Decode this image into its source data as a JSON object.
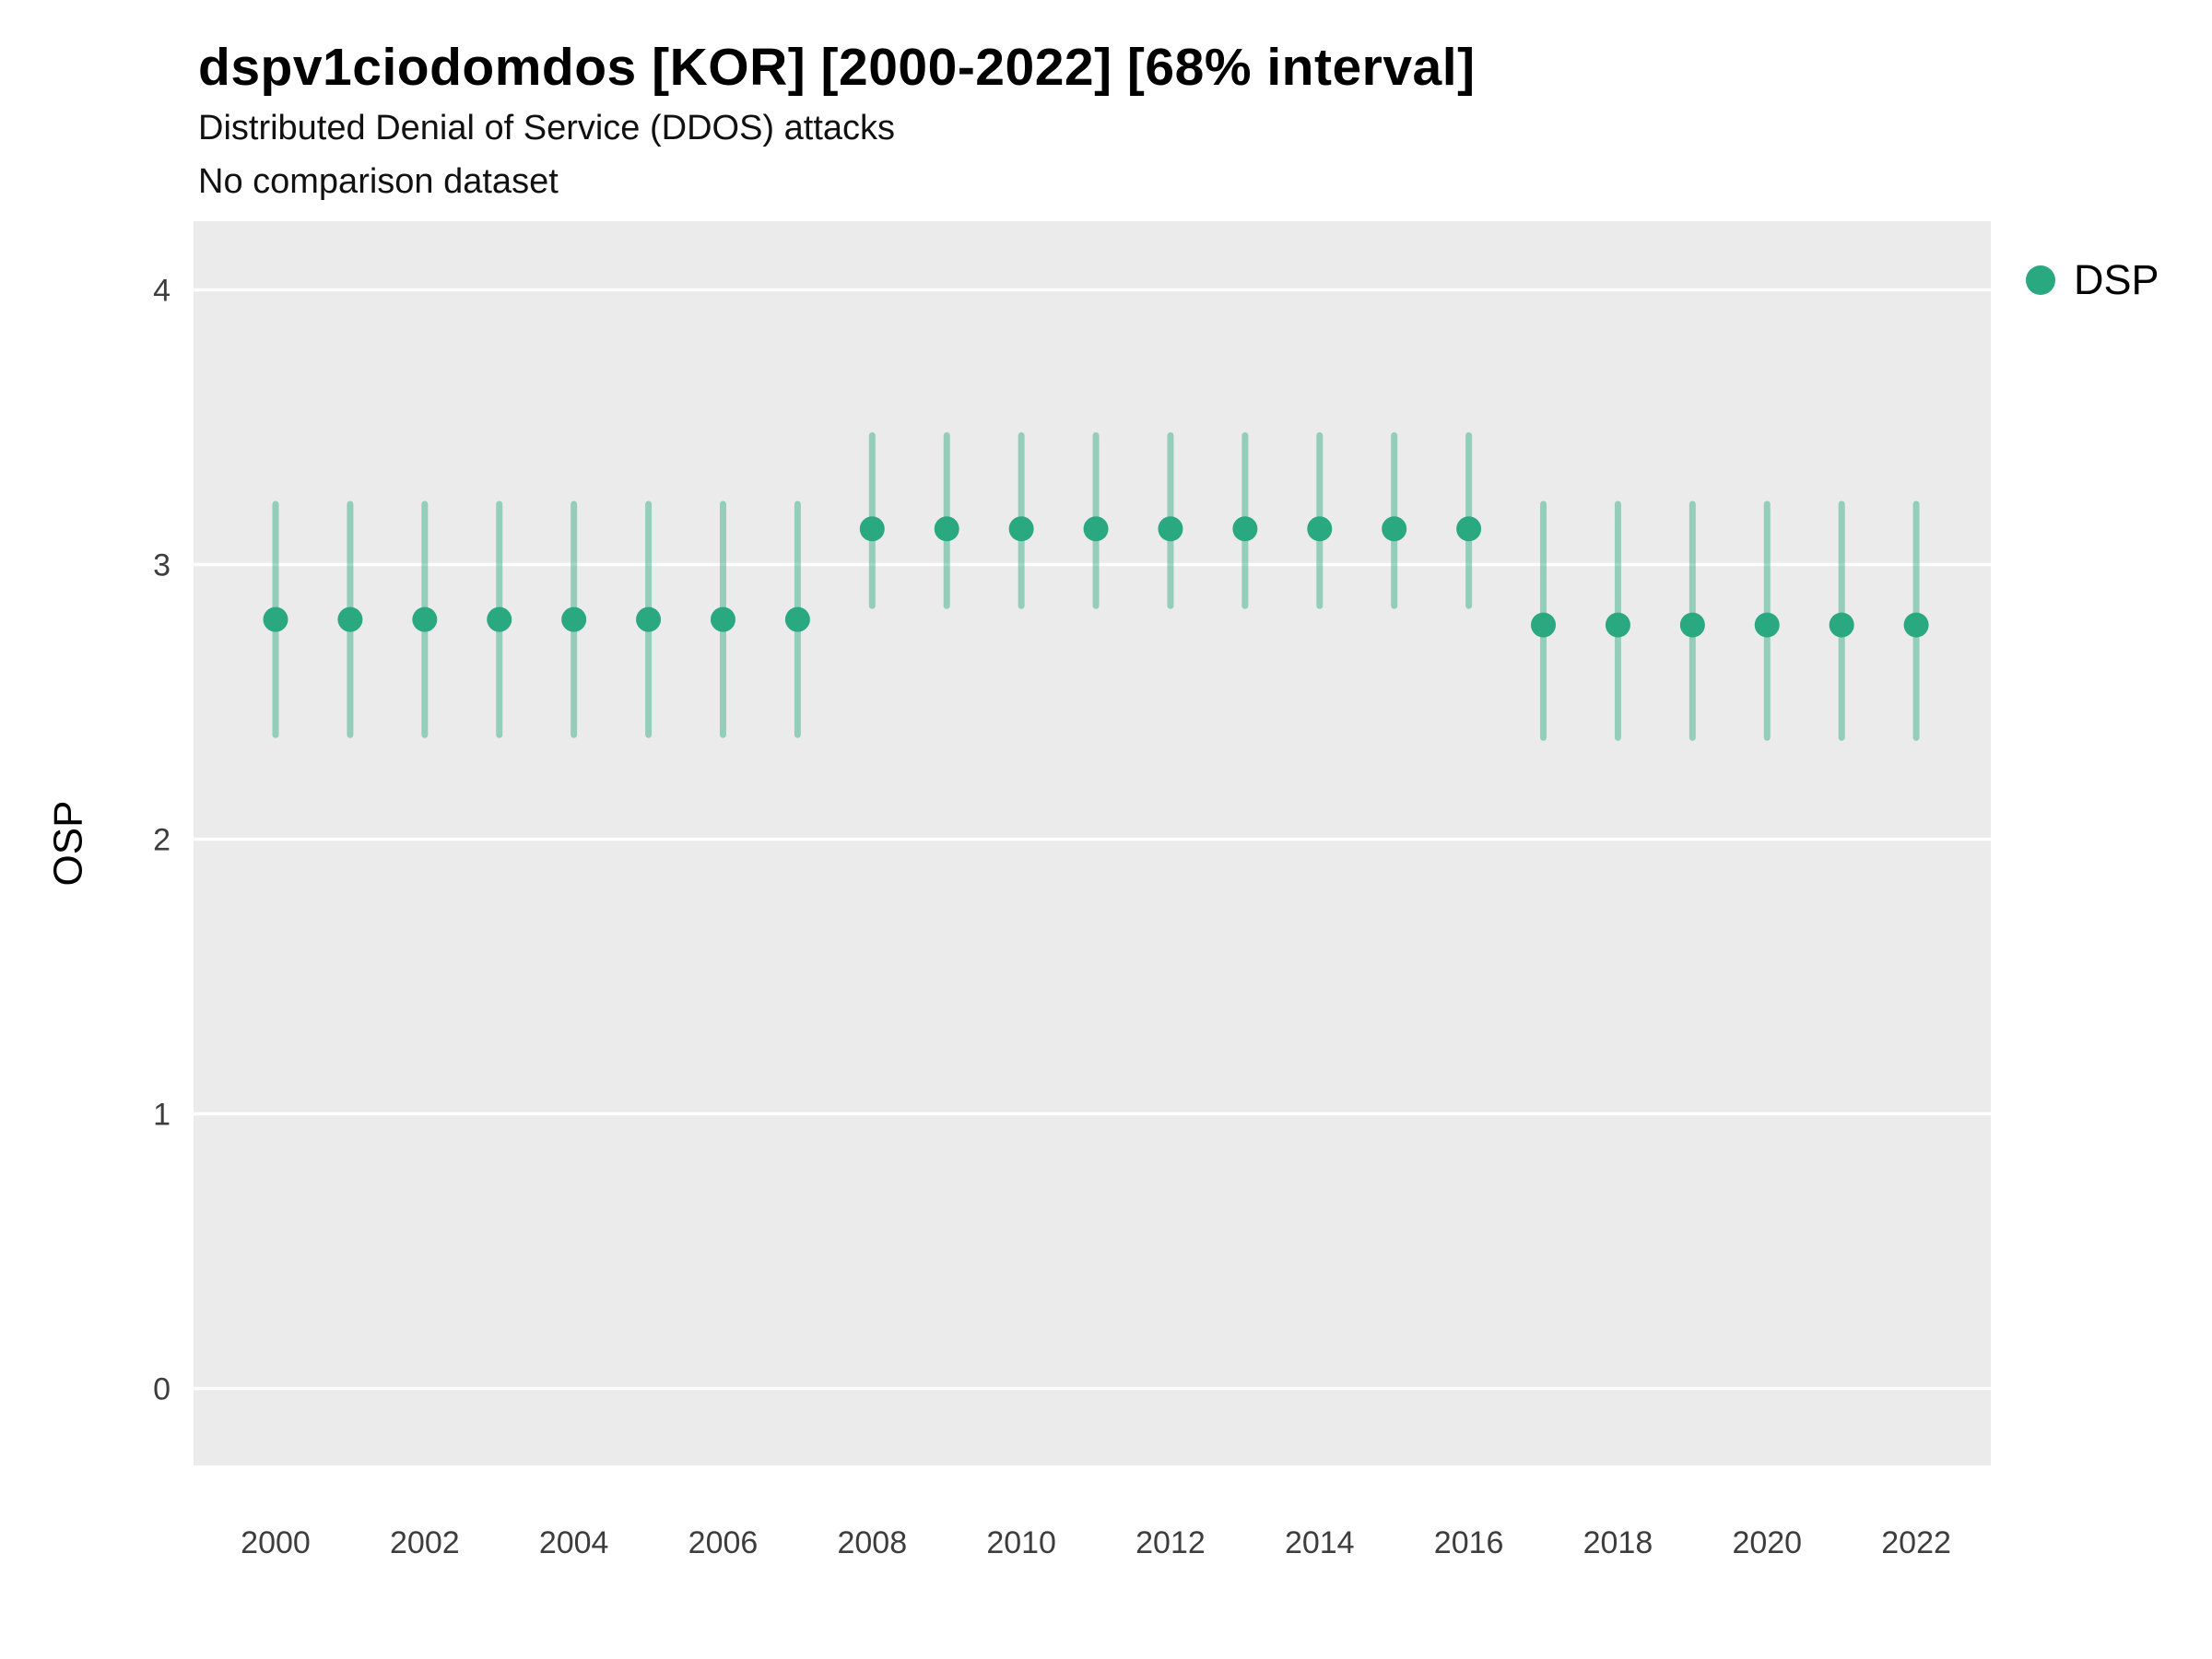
{
  "header": {
    "title": "dspv1ciodomdos [KOR] [2000-2022] [68% interval]",
    "subtitle": "Distributed Denial of Service (DDOS) attacks",
    "note": "No comparison dataset"
  },
  "axes": {
    "ylabel": "OSP",
    "yticks": [
      0,
      1,
      2,
      3,
      4
    ],
    "xticks": [
      2000,
      2002,
      2004,
      2006,
      2008,
      2010,
      2012,
      2014,
      2016,
      2018,
      2020,
      2022
    ]
  },
  "legend": {
    "items": [
      {
        "label": "DSP",
        "color": "#2aa87f"
      }
    ]
  },
  "colors": {
    "point": "#2aa87f",
    "interval": "#2aa87f",
    "interval_opacity": 0.45,
    "panel": "#ebebeb",
    "grid": "#ffffff"
  },
  "chart_data": {
    "type": "scatter",
    "subtype": "pointrange",
    "title": "dspv1ciodomdos [KOR] [2000-2022] [68% interval]",
    "subtitle": "Distributed Denial of Service (DDOS) attacks",
    "note": "No comparison dataset",
    "xlabel": "",
    "ylabel": "OSP",
    "interval": "68%",
    "legend_position": "right",
    "grid": "major-horizontal",
    "ylim": [
      -0.28,
      4.25
    ],
    "xlim": [
      1998.9,
      2023.0
    ],
    "x": [
      2000,
      2001,
      2002,
      2003,
      2004,
      2005,
      2006,
      2007,
      2008,
      2009,
      2010,
      2011,
      2012,
      2013,
      2014,
      2015,
      2016,
      2017,
      2018,
      2019,
      2020,
      2021,
      2022
    ],
    "series": [
      {
        "name": "DSP",
        "values": [
          2.8,
          2.8,
          2.8,
          2.8,
          2.8,
          2.8,
          2.8,
          2.8,
          3.13,
          3.13,
          3.13,
          3.13,
          3.13,
          3.13,
          3.13,
          3.13,
          3.13,
          2.78,
          2.78,
          2.78,
          2.78,
          2.78,
          2.78
        ],
        "low": [
          2.38,
          2.38,
          2.38,
          2.38,
          2.38,
          2.38,
          2.38,
          2.38,
          2.85,
          2.85,
          2.85,
          2.85,
          2.85,
          2.85,
          2.85,
          2.85,
          2.85,
          2.37,
          2.37,
          2.37,
          2.37,
          2.37,
          2.37
        ],
        "high": [
          3.22,
          3.22,
          3.22,
          3.22,
          3.22,
          3.22,
          3.22,
          3.22,
          3.47,
          3.47,
          3.47,
          3.47,
          3.47,
          3.47,
          3.47,
          3.47,
          3.47,
          3.22,
          3.22,
          3.22,
          3.22,
          3.22,
          3.22
        ]
      }
    ]
  }
}
